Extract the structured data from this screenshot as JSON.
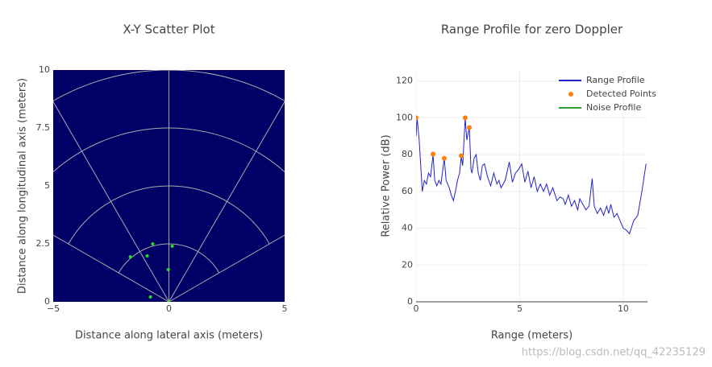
{
  "chart_data": [
    {
      "type": "scatter",
      "title": "X-Y Scatter Plot",
      "xlabel": "Distance along lateral axis (meters)",
      "ylabel": "Distance along longitudinal axis (meters)",
      "background": "#000066",
      "xlim": [
        -5,
        5
      ],
      "ylim": [
        0,
        10
      ],
      "xticks": [
        {
          "value": -5,
          "label": "−5"
        },
        0,
        5
      ],
      "yticks": [
        0,
        2.5,
        5,
        7.5,
        10
      ],
      "series": [
        {
          "name": "Detected Points",
          "color": "#22dd22",
          "mode": "markers",
          "x": [
            -0.7,
            0.14,
            -1.67,
            -0.94,
            -0.03,
            -0.8,
            0
          ],
          "values": [
            2.5,
            2.4,
            1.94,
            1.98,
            1.39,
            0.21,
            0
          ]
        }
      ]
    },
    {
      "type": "line",
      "title": "Range Profile for zero Doppler",
      "xlabel": "Range (meters)",
      "ylabel": "Relative Power (dB)",
      "xlim": [
        0,
        11.17
      ],
      "ylim": [
        0,
        126
      ],
      "xticks": [
        0,
        5,
        10
      ],
      "yticks": [
        0,
        20,
        40,
        60,
        80,
        100,
        120
      ],
      "grid": true,
      "legend": "top-right",
      "series": [
        {
          "name": "Range Profile",
          "color": "#2222cc",
          "mode": "lines",
          "x": [
            0,
            0.05,
            0.15,
            0.3,
            0.4,
            0.5,
            0.6,
            0.7,
            0.82,
            0.9,
            1.0,
            1.1,
            1.2,
            1.36,
            1.45,
            1.6,
            1.7,
            1.8,
            1.9,
            2.0,
            2.1,
            2.18,
            2.25,
            2.37,
            2.45,
            2.57,
            2.65,
            2.7,
            2.8,
            2.9,
            3.0,
            3.1,
            3.2,
            3.3,
            3.45,
            3.6,
            3.75,
            3.9,
            4.0,
            4.1,
            4.3,
            4.5,
            4.65,
            4.8,
            4.95,
            5.1,
            5.25,
            5.4,
            5.55,
            5.7,
            5.85,
            6.0,
            6.15,
            6.3,
            6.45,
            6.6,
            6.8,
            6.95,
            7.1,
            7.2,
            7.35,
            7.5,
            7.65,
            7.8,
            7.9,
            8.0,
            8.2,
            8.35,
            8.5,
            8.6,
            8.75,
            8.9,
            9.05,
            9.2,
            9.3,
            9.4,
            9.55,
            9.7,
            9.85,
            10.0,
            10.15,
            10.3,
            10.5,
            10.7,
            10.9,
            11.1
          ],
          "values": [
            90,
            100,
            88,
            60,
            66,
            64,
            70,
            68,
            80,
            66,
            63,
            66,
            64,
            78,
            66,
            62,
            58,
            55,
            60,
            66,
            70,
            79,
            74,
            100,
            88,
            95,
            72,
            70,
            78,
            80,
            70,
            66,
            74,
            75,
            68,
            63,
            70,
            64,
            66,
            62,
            66,
            76,
            65,
            70,
            72,
            75,
            65,
            71,
            62,
            68,
            60,
            64,
            60,
            64,
            58,
            62,
            55,
            57,
            56,
            53,
            58,
            52,
            55,
            50,
            56,
            54,
            50,
            52,
            67,
            52,
            48,
            51,
            47,
            52,
            48,
            53,
            46,
            48,
            44,
            40,
            39,
            37,
            44,
            47,
            60,
            75
          ]
        },
        {
          "name": "Detected Points",
          "color": "#ff7f0e",
          "mode": "markers",
          "x": [
            0,
            0.82,
            1.36,
            2.18,
            2.37,
            2.57
          ],
          "values": [
            100,
            80.3,
            78,
            79.4,
            100,
            94.7
          ]
        },
        {
          "name": "Noise Profile",
          "color": "#2ca02c",
          "mode": "lines",
          "x": [],
          "values": []
        }
      ]
    }
  ],
  "watermark": "https://blog.csdn.net/qq_42235129"
}
